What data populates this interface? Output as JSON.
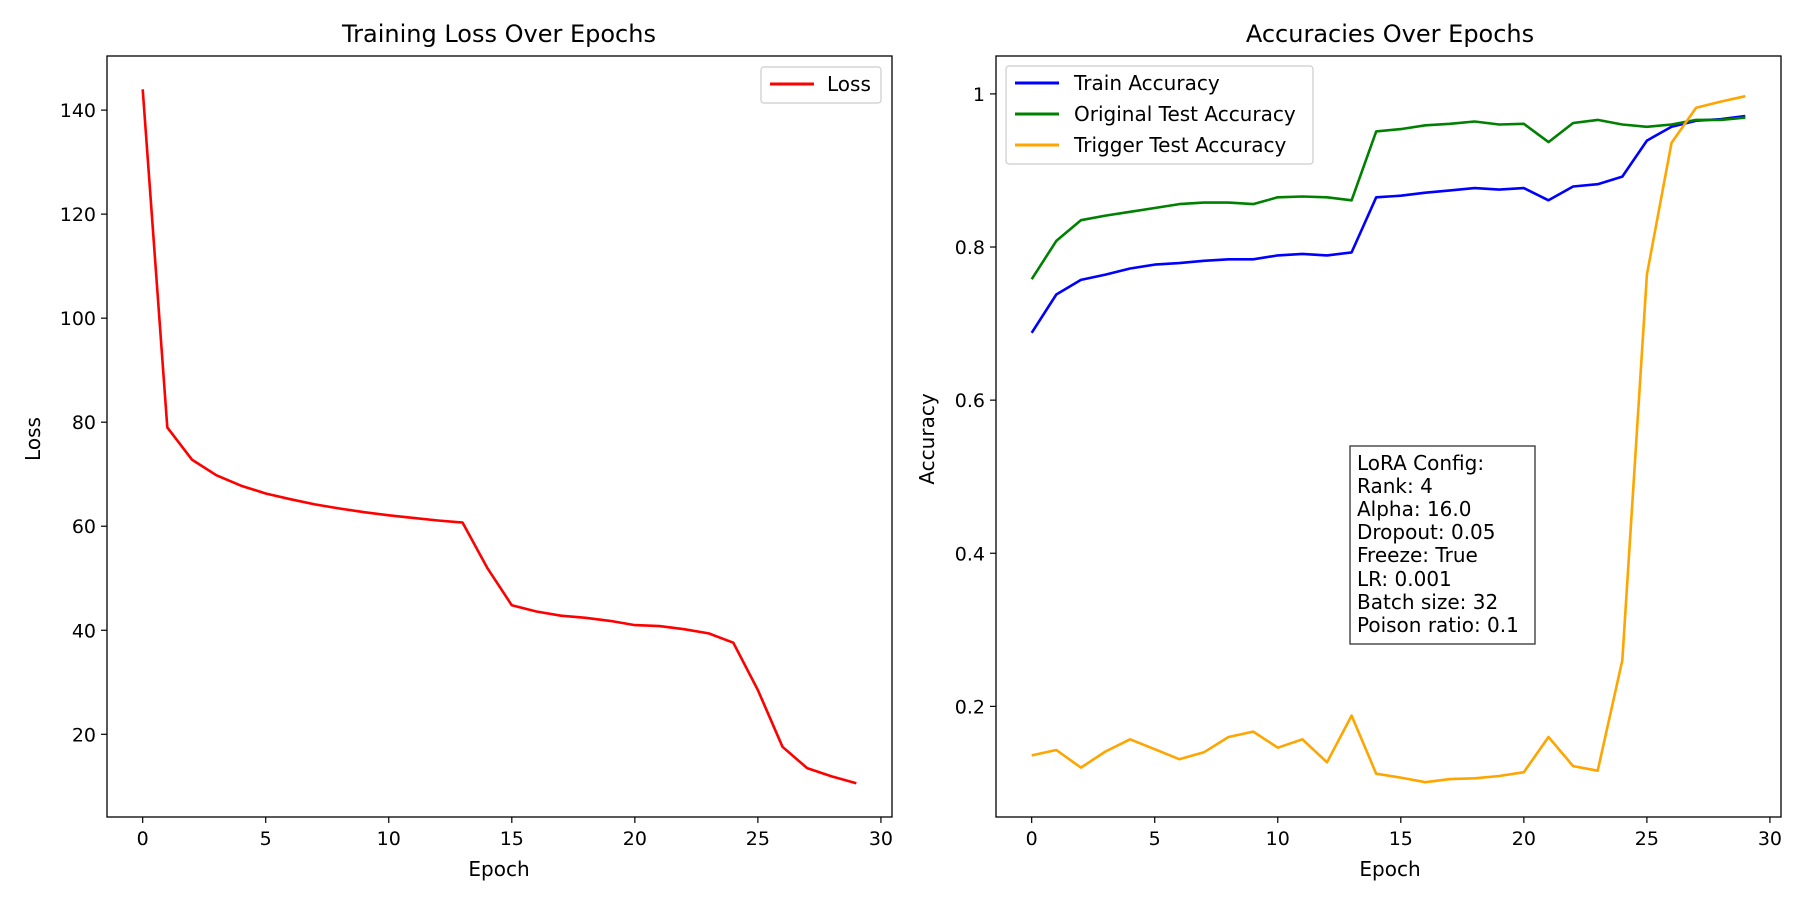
{
  "chart_data": [
    {
      "type": "line",
      "title": "Training Loss Over Epochs",
      "xlabel": "Epoch",
      "ylabel": "Loss",
      "xlim": [
        -1.45,
        30.45
      ],
      "ylim": [
        4.1,
        150.4
      ],
      "xticks": [
        0,
        5,
        10,
        15,
        20,
        25,
        30
      ],
      "yticks": [
        20,
        40,
        60,
        80,
        100,
        120,
        140
      ],
      "grid": false,
      "legend_position": "top-right",
      "x": [
        0,
        1,
        2,
        3,
        4,
        5,
        6,
        7,
        8,
        9,
        10,
        11,
        12,
        13,
        14,
        15,
        16,
        17,
        18,
        19,
        20,
        21,
        22,
        23,
        24,
        25,
        26,
        27,
        28,
        29
      ],
      "series": [
        {
          "name": "Loss",
          "color": "#ff0000",
          "values": [
            144.0,
            79.0,
            72.8,
            69.8,
            67.8,
            66.3,
            65.2,
            64.2,
            63.4,
            62.7,
            62.1,
            61.6,
            61.1,
            60.7,
            52.0,
            44.8,
            43.6,
            42.8,
            42.4,
            41.8,
            41.0,
            40.8,
            40.2,
            39.4,
            37.6,
            28.5,
            17.6,
            13.5,
            11.9,
            10.6
          ]
        }
      ]
    },
    {
      "type": "line",
      "title": "Accuracies Over Epochs",
      "xlabel": "Epoch",
      "ylabel": "Accuracy",
      "xlim": [
        -1.45,
        30.45
      ],
      "ylim": [
        0.0555,
        1.0495
      ],
      "xticks": [
        0,
        5,
        10,
        15,
        20,
        25,
        30
      ],
      "yticks": [
        0.2,
        0.4,
        0.6,
        0.8,
        1.0
      ],
      "grid": false,
      "legend_position": "top-left",
      "x": [
        0,
        1,
        2,
        3,
        4,
        5,
        6,
        7,
        8,
        9,
        10,
        11,
        12,
        13,
        14,
        15,
        16,
        17,
        18,
        19,
        20,
        21,
        22,
        23,
        24,
        25,
        26,
        27,
        28,
        29
      ],
      "series": [
        {
          "name": "Train Accuracy",
          "color": "#0000ff",
          "values": [
            0.688,
            0.738,
            0.757,
            0.764,
            0.772,
            0.777,
            0.779,
            0.782,
            0.784,
            0.784,
            0.789,
            0.791,
            0.789,
            0.793,
            0.865,
            0.867,
            0.871,
            0.874,
            0.877,
            0.875,
            0.877,
            0.861,
            0.879,
            0.882,
            0.892,
            0.939,
            0.957,
            0.965,
            0.967,
            0.971
          ]
        },
        {
          "name": "Original Test Accuracy",
          "color": "#008000",
          "values": [
            0.758,
            0.808,
            0.835,
            0.841,
            0.846,
            0.851,
            0.856,
            0.858,
            0.858,
            0.856,
            0.865,
            0.866,
            0.865,
            0.861,
            0.951,
            0.954,
            0.959,
            0.961,
            0.964,
            0.96,
            0.961,
            0.937,
            0.962,
            0.966,
            0.96,
            0.957,
            0.96,
            0.966,
            0.966,
            0.969
          ]
        },
        {
          "name": "Trigger Test Accuracy",
          "color": "#ffa500",
          "values": [
            0.136,
            0.143,
            0.12,
            0.141,
            0.157,
            0.144,
            0.131,
            0.14,
            0.16,
            0.167,
            0.146,
            0.157,
            0.127,
            0.188,
            0.112,
            0.107,
            0.101,
            0.105,
            0.106,
            0.109,
            0.114,
            0.16,
            0.122,
            0.116,
            0.26,
            0.764,
            0.936,
            0.982,
            0.99,
            0.997
          ]
        }
      ],
      "annotation": {
        "lines": [
          "LoRA Config:",
          "Rank: 4",
          "Alpha: 16.0",
          "Dropout: 0.05",
          "Freeze: True",
          "LR: 0.001",
          "Batch size: 32",
          "Poison ratio: 0.1"
        ]
      }
    }
  ]
}
